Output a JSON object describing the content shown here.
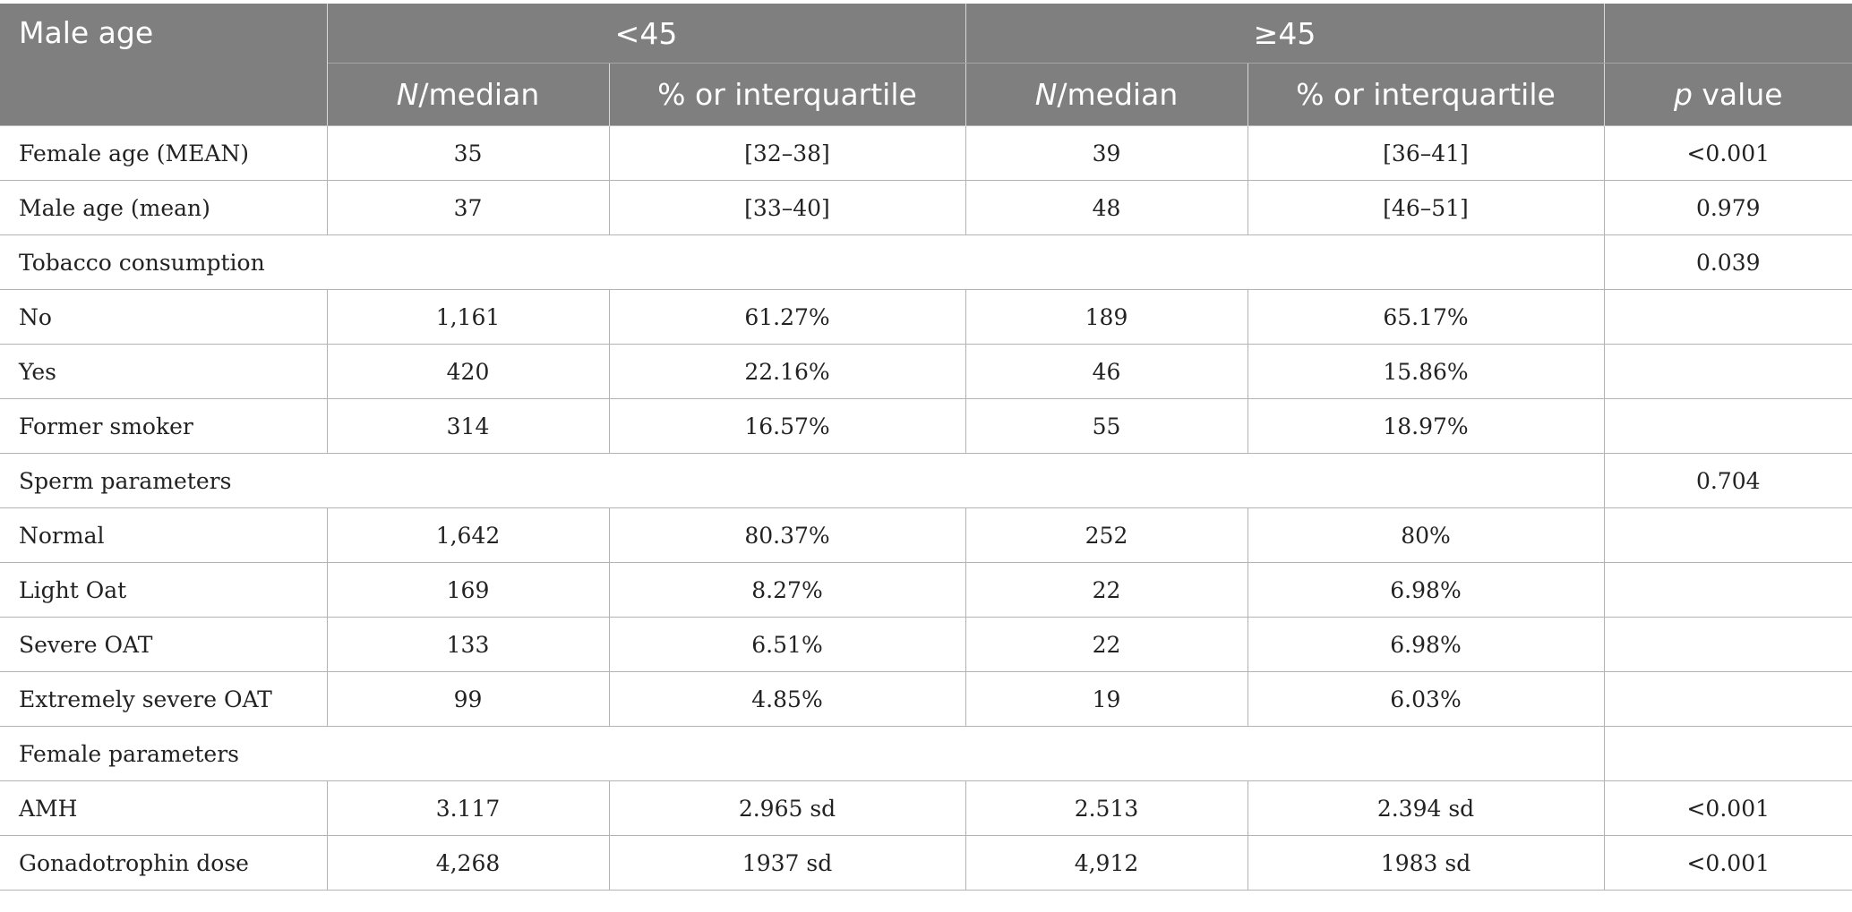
{
  "header": {
    "row_label": "Male age",
    "group_lt45": "<45",
    "group_ge45": "≥45",
    "n_median_prefix": "N",
    "n_median_suffix": "/median",
    "pct_iqr": "% or interquartile",
    "p_prefix": "p",
    "p_suffix": " value"
  },
  "rows": [
    {
      "label": "Female age (MEAN)",
      "lt_n": "35",
      "lt_pct": "[32–38]",
      "ge_n": "39",
      "ge_pct": "[36–41]",
      "p": "<0.001"
    },
    {
      "label": "Male age (mean)",
      "lt_n": "37",
      "lt_pct": "[33–40]",
      "ge_n": "48",
      "ge_pct": "[46–51]",
      "p": "0.979"
    },
    {
      "label": "Tobacco consumption",
      "p": "0.039"
    },
    {
      "label": "No",
      "lt_n": "1,161",
      "lt_pct": "61.27%",
      "ge_n": "189",
      "ge_pct": "65.17%",
      "p": ""
    },
    {
      "label": "Yes",
      "lt_n": "420",
      "lt_pct": "22.16%",
      "ge_n": "46",
      "ge_pct": "15.86%",
      "p": ""
    },
    {
      "label": "Former smoker",
      "lt_n": "314",
      "lt_pct": "16.57%",
      "ge_n": "55",
      "ge_pct": "18.97%",
      "p": ""
    },
    {
      "label": "Sperm parameters",
      "p": "0.704"
    },
    {
      "label": "Normal",
      "lt_n": "1,642",
      "lt_pct": "80.37%",
      "ge_n": "252",
      "ge_pct": "80%",
      "p": ""
    },
    {
      "label": "Light Oat",
      "lt_n": "169",
      "lt_pct": "8.27%",
      "ge_n": "22",
      "ge_pct": "6.98%",
      "p": ""
    },
    {
      "label": "Severe OAT",
      "lt_n": "133",
      "lt_pct": "6.51%",
      "ge_n": "22",
      "ge_pct": "6.98%",
      "p": ""
    },
    {
      "label": "Extremely severe OAT",
      "lt_n": "99",
      "lt_pct": "4.85%",
      "ge_n": "19",
      "ge_pct": "6.03%",
      "p": ""
    },
    {
      "label": "Female parameters",
      "p": ""
    },
    {
      "label": "AMH",
      "lt_n": "3.117",
      "lt_pct": "2.965 sd",
      "ge_n": "2.513",
      "ge_pct": "2.394 sd",
      "p": "<0.001"
    },
    {
      "label": "Gonadotrophin dose",
      "lt_n": "4,268",
      "lt_pct": "1937 sd",
      "ge_n": "4,912",
      "ge_pct": "1983 sd",
      "p": "<0.001"
    }
  ]
}
